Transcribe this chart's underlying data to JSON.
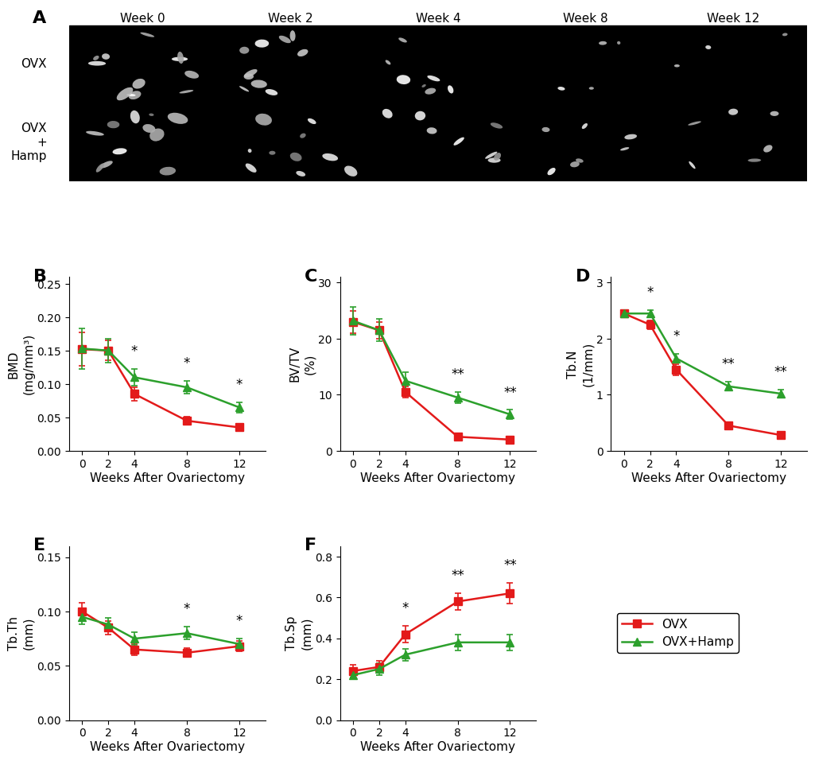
{
  "weeks": [
    0,
    2,
    4,
    8,
    12
  ],
  "BMD": {
    "OVX": [
      0.152,
      0.15,
      0.085,
      0.045,
      0.035
    ],
    "OVX_Hamp": [
      0.153,
      0.15,
      0.11,
      0.095,
      0.065
    ],
    "OVX_err": [
      0.025,
      0.015,
      0.01,
      0.006,
      0.005
    ],
    "OVX_Hamp_err": [
      0.03,
      0.018,
      0.012,
      0.01,
      0.008
    ],
    "ylabel": "BMD\n(mg/mm³)",
    "ylim": [
      0,
      0.26
    ],
    "yticks": [
      0.0,
      0.05,
      0.1,
      0.15,
      0.2,
      0.25
    ],
    "sig": {
      "4": "*",
      "8": "*",
      "12": "*"
    }
  },
  "BVTV": {
    "OVX": [
      23.0,
      21.5,
      10.5,
      2.5,
      2.0
    ],
    "OVX_Hamp": [
      23.2,
      21.5,
      12.5,
      9.5,
      6.5
    ],
    "OVX_err": [
      2.0,
      1.5,
      1.0,
      0.5,
      0.3
    ],
    "OVX_Hamp_err": [
      2.5,
      2.0,
      1.5,
      1.0,
      0.8
    ],
    "ylabel": "BV/TV\n(%)",
    "ylim": [
      0,
      31
    ],
    "yticks": [
      0,
      10,
      20,
      30
    ],
    "sig": {
      "8": "**",
      "12": "**"
    }
  },
  "TbN": {
    "OVX": [
      2.45,
      2.25,
      1.45,
      0.45,
      0.28
    ],
    "OVX_Hamp": [
      2.45,
      2.45,
      1.65,
      1.15,
      1.02
    ],
    "OVX_err": [
      0.06,
      0.08,
      0.1,
      0.06,
      0.05
    ],
    "OVX_Hamp_err": [
      0.06,
      0.06,
      0.08,
      0.08,
      0.07
    ],
    "ylabel": "Tb.N\n(1/mm)",
    "ylim": [
      0,
      3.1
    ],
    "yticks": [
      0,
      1,
      2,
      3
    ],
    "sig": {
      "2": "*",
      "4": "*",
      "8": "**",
      "12": "**"
    }
  },
  "TbTh": {
    "OVX": [
      0.1,
      0.085,
      0.065,
      0.062,
      0.068
    ],
    "OVX_Hamp": [
      0.095,
      0.088,
      0.075,
      0.08,
      0.07
    ],
    "OVX_err": [
      0.008,
      0.006,
      0.005,
      0.004,
      0.005
    ],
    "OVX_Hamp_err": [
      0.007,
      0.006,
      0.006,
      0.006,
      0.005
    ],
    "ylabel": "Tb.Th\n(mm)",
    "ylim": [
      0,
      0.16
    ],
    "yticks": [
      0.0,
      0.05,
      0.1,
      0.15
    ],
    "sig": {
      "8": "*",
      "12": "*"
    }
  },
  "TbSp": {
    "OVX": [
      0.24,
      0.26,
      0.42,
      0.58,
      0.62
    ],
    "OVX_Hamp": [
      0.22,
      0.25,
      0.32,
      0.38,
      0.38
    ],
    "OVX_err": [
      0.03,
      0.03,
      0.04,
      0.04,
      0.05
    ],
    "OVX_Hamp_err": [
      0.02,
      0.03,
      0.03,
      0.04,
      0.04
    ],
    "ylabel": "Tb.Sp\n(mm)",
    "ylim": [
      0,
      0.85
    ],
    "yticks": [
      0.0,
      0.2,
      0.4,
      0.6,
      0.8
    ],
    "sig": {
      "4": "*",
      "8": "**",
      "12": "**"
    }
  },
  "ovx_color": "#e31a1a",
  "hamp_color": "#2ca02c",
  "marker_ovx": "s",
  "marker_hamp": "^",
  "linewidth": 1.8,
  "markersize": 7,
  "panel_label_fontsize": 16,
  "axis_label_fontsize": 11,
  "tick_fontsize": 10,
  "legend_fontsize": 11,
  "xlabel": "Weeks After Ovariectomy"
}
